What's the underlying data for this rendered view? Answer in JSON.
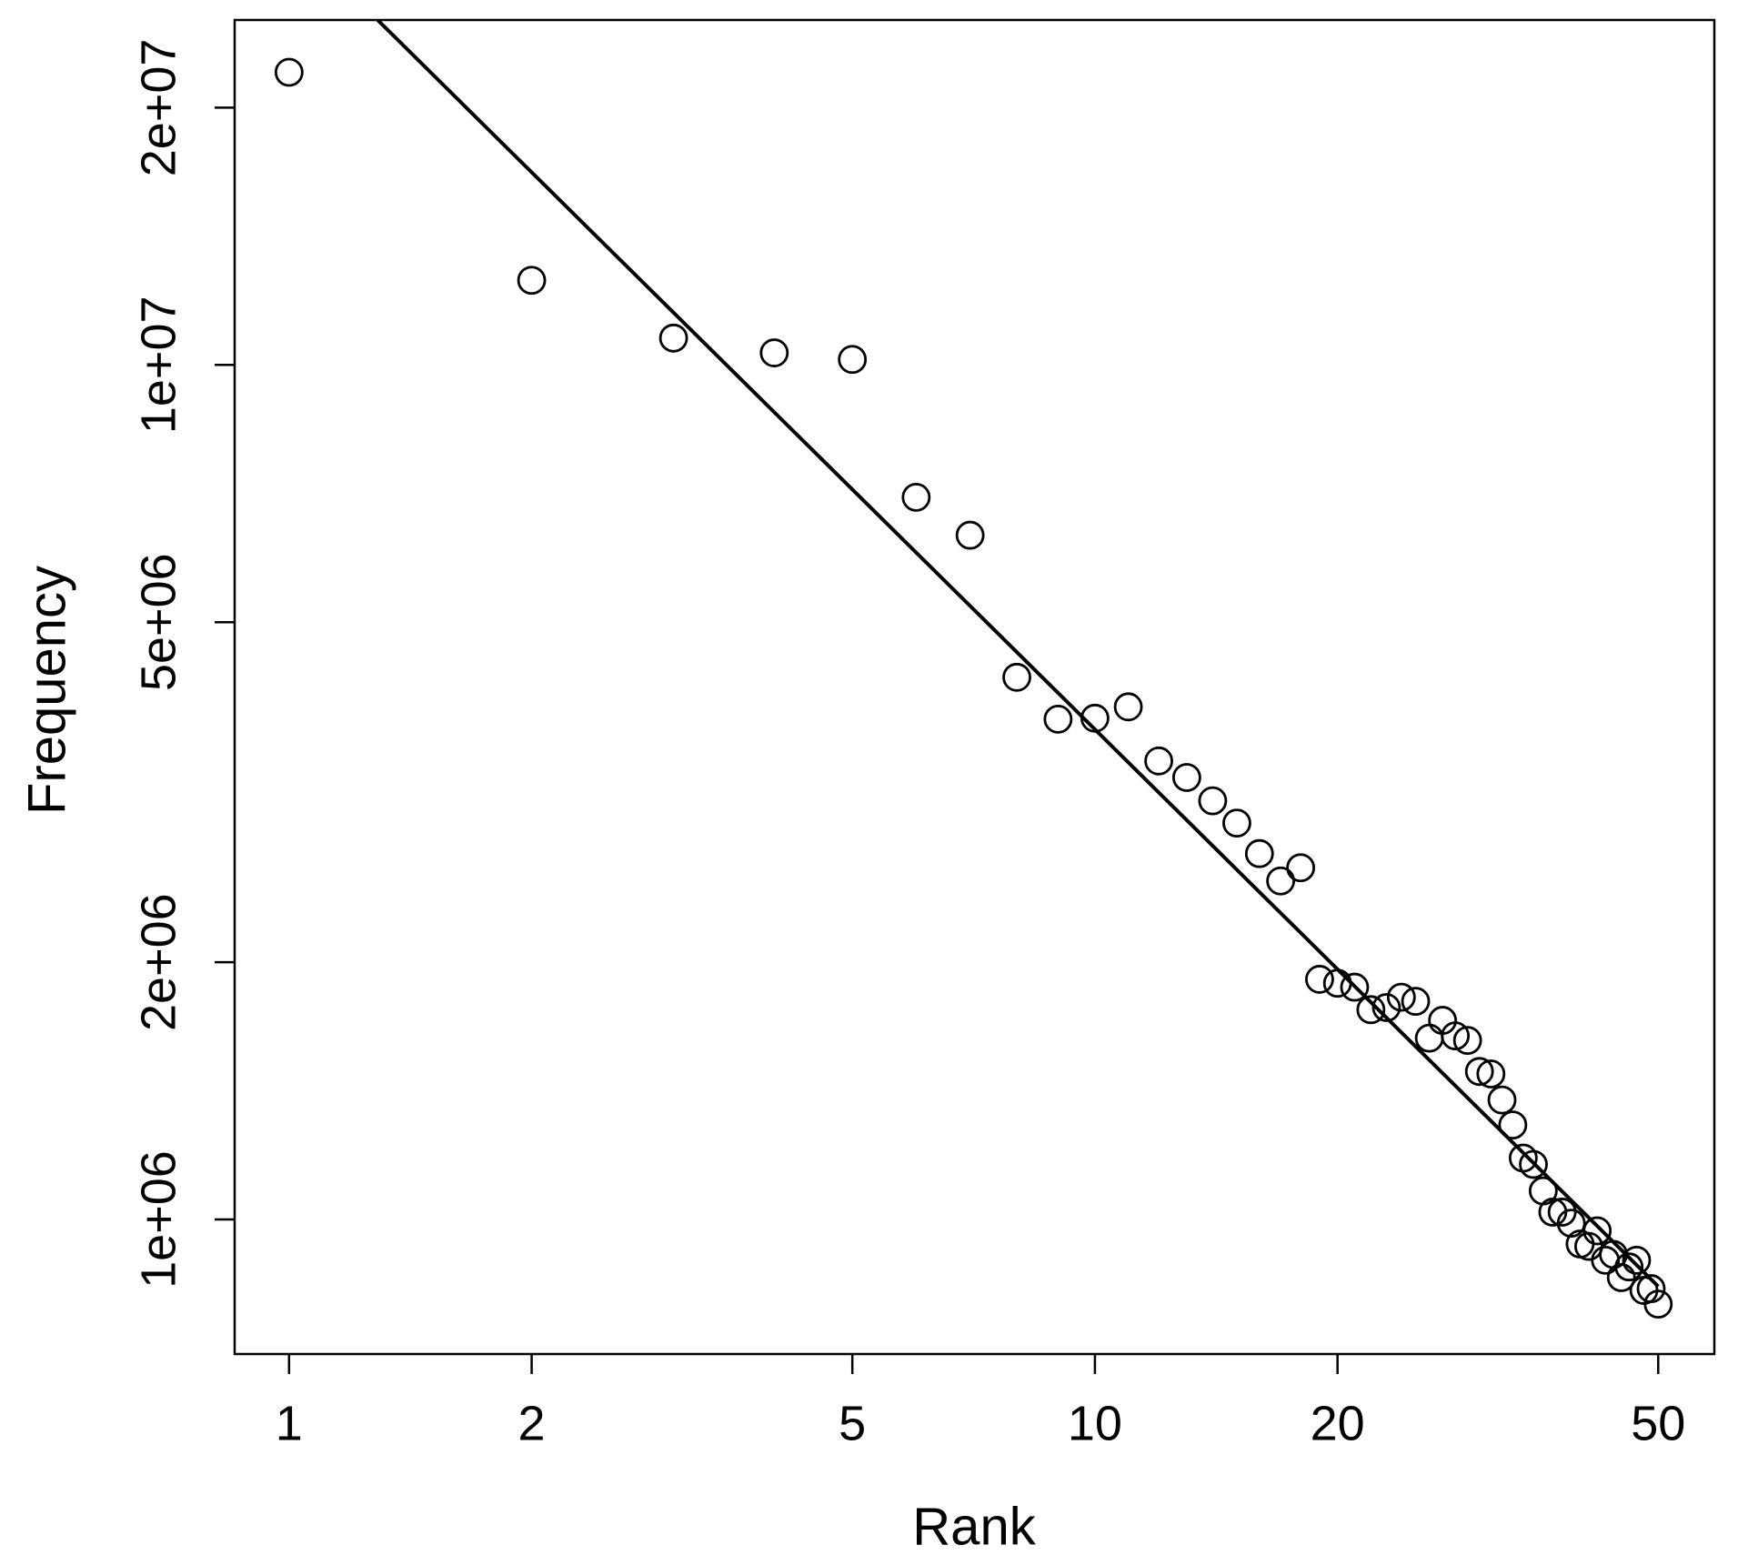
{
  "chart_data": {
    "type": "scatter",
    "x_label": "Rank",
    "y_label": "Frequency",
    "x_log": true,
    "y_log": true,
    "x": [
      1,
      2,
      3,
      4,
      5,
      6,
      7,
      8,
      9,
      10,
      11,
      12,
      13,
      14,
      15,
      16,
      17,
      18,
      19,
      20,
      21,
      22,
      23,
      24,
      25,
      26,
      27,
      28,
      29,
      30,
      31,
      32,
      33,
      34,
      35,
      36,
      37,
      38,
      39,
      40,
      41,
      42,
      43,
      44,
      45,
      46,
      47,
      48,
      49,
      50
    ],
    "values": [
      22000000,
      12560000,
      10750000,
      10330000,
      10150000,
      7000000,
      6320000,
      4310000,
      3850000,
      3860000,
      3980000,
      3440000,
      3290000,
      3090000,
      2910000,
      2680000,
      2490000,
      2580000,
      1910000,
      1890000,
      1870000,
      1760000,
      1770000,
      1820000,
      1800000,
      1630000,
      1710000,
      1640000,
      1620000,
      1490000,
      1480000,
      1380000,
      1290000,
      1180000,
      1160000,
      1080000,
      1020000,
      1020000,
      990000,
      936000,
      930000,
      970000,
      896000,
      910000,
      855000,
      880000,
      896000,
      826000,
      830000,
      796000
    ],
    "color": "#000000",
    "fit_line": {
      "x": [
        1.288,
        50
      ],
      "y": [
        25330000,
        835000
      ]
    },
    "xlim": [
      0.856,
      58.7
    ],
    "xticks": [
      1,
      2,
      5,
      10,
      20,
      50
    ],
    "ylim": [
      695900,
      25330000
    ],
    "yticks": [
      {
        "value": 1000000,
        "label": "1e+06"
      },
      {
        "value": 2000000,
        "label": "2e+06"
      },
      {
        "value": 5000000,
        "label": "5e+06"
      },
      {
        "value": 10000000,
        "label": "1e+07"
      },
      {
        "value": 20000000,
        "label": "2e+07"
      }
    ]
  }
}
